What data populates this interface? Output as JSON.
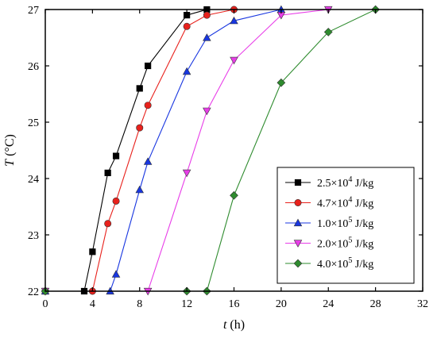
{
  "chart_data": {
    "type": "line",
    "xlabel": {
      "italic": "t",
      "unit": " (h)"
    },
    "ylabel": {
      "italic": "T",
      "unit": " (°C)"
    },
    "xlim": [
      0,
      32
    ],
    "ylim": [
      22,
      27
    ],
    "x_ticks": [
      0,
      4,
      8,
      12,
      16,
      20,
      24,
      28,
      32
    ],
    "y_ticks": [
      22,
      23,
      24,
      25,
      26,
      27
    ],
    "grid": false,
    "legend_position": "bottom-right",
    "series": [
      {
        "label": {
          "base": "2.5×10",
          "exp": "4",
          "unit": " J/kg"
        },
        "color": "#000000",
        "marker": "square",
        "x": [
          0,
          3.3,
          4,
          5.3,
          6,
          8,
          8.7,
          12,
          13.7
        ],
        "y": [
          22,
          22,
          22.7,
          24.1,
          24.4,
          25.6,
          26,
          26.9,
          27
        ]
      },
      {
        "label": {
          "base": "4.7×10",
          "exp": "4",
          "unit": " J/kg"
        },
        "color": "#e8211c",
        "marker": "circle",
        "x": [
          0,
          4,
          5.3,
          6,
          8,
          8.7,
          12,
          13.7,
          16
        ],
        "y": [
          22,
          22,
          23.2,
          23.6,
          24.9,
          25.3,
          26.7,
          26.9,
          27
        ]
      },
      {
        "label": {
          "base": "1.0×10",
          "exp": "5",
          "unit": " J/kg"
        },
        "color": "#1836e0",
        "marker": "triangle-up",
        "x": [
          0,
          5.5,
          6,
          8,
          8.7,
          12,
          13.7,
          16,
          20
        ],
        "y": [
          22,
          22,
          22.3,
          23.8,
          24.3,
          25.9,
          26.5,
          26.8,
          27
        ]
      },
      {
        "label": {
          "base": "2.0×10",
          "exp": "5",
          "unit": " J/kg"
        },
        "color": "#e83ce8",
        "marker": "triangle-down",
        "x": [
          0,
          8.7,
          12,
          13.7,
          16,
          20,
          24
        ],
        "y": [
          22,
          22,
          24.1,
          25.2,
          26.1,
          26.9,
          27
        ]
      },
      {
        "label": {
          "base": "4.0×10",
          "exp": "5",
          "unit": " J/kg"
        },
        "color": "#2e8b2e",
        "marker": "diamond",
        "x": [
          0,
          12,
          13.7,
          16,
          20,
          24,
          28
        ],
        "y": [
          22,
          22,
          22,
          23.7,
          25.7,
          26.6,
          27
        ]
      }
    ]
  }
}
